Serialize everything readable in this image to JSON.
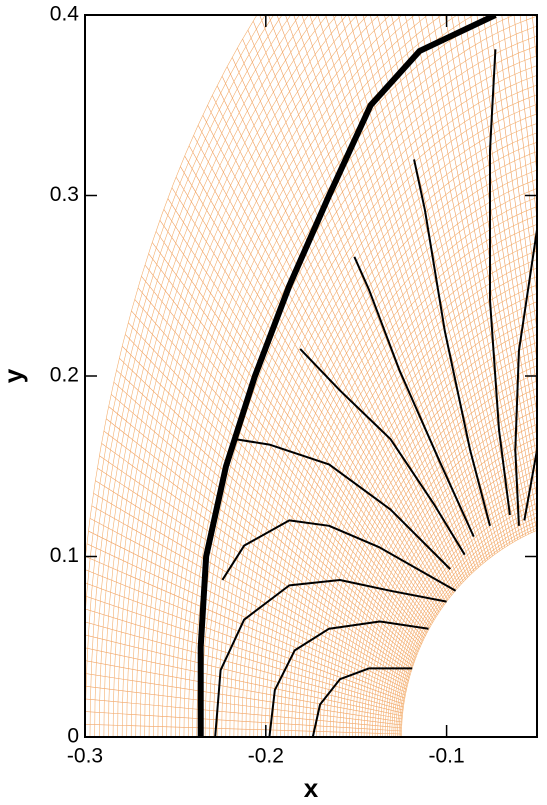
{
  "chart_data": {
    "type": "line",
    "x_label": "x",
    "y_label": "y",
    "xlim": [
      -0.3,
      -0.05
    ],
    "ylim": [
      0,
      0.4
    ],
    "xticks": [
      -0.3,
      -0.2,
      -0.1
    ],
    "yticks": [
      0,
      0.1,
      0.2,
      0.3,
      0.4
    ],
    "series": [
      {
        "color": "#000000",
        "x": [
          -0.236,
          -0.236,
          -0.233,
          -0.222,
          -0.206,
          -0.187,
          -0.165,
          -0.142,
          -0.115,
          -0.073
        ],
        "values": [
          0,
          0.05,
          0.1,
          0.15,
          0.2,
          0.25,
          0.3,
          0.35,
          0.38,
          0.4
        ]
      },
      {
        "color": "#000000",
        "x": [
          -0.174,
          -0.17,
          -0.159,
          -0.143,
          -0.123,
          -0.119
        ],
        "values": [
          0,
          0.018,
          0.032,
          0.038,
          0.038,
          0.038
        ]
      },
      {
        "color": "#000000",
        "x": [
          -0.198,
          -0.195,
          -0.184,
          -0.165,
          -0.137,
          -0.11
        ],
        "values": [
          0,
          0.026,
          0.048,
          0.06,
          0.064,
          0.06
        ]
      },
      {
        "color": "#000000",
        "x": [
          -0.228,
          -0.225,
          -0.212,
          -0.187,
          -0.159,
          -0.131,
          -0.1
        ],
        "values": [
          0,
          0.037,
          0.065,
          0.084,
          0.087,
          0.081,
          0.075
        ]
      },
      {
        "color": "#000000",
        "x": [
          -0.224,
          -0.212,
          -0.187,
          -0.165,
          -0.137,
          -0.095
        ],
        "values": [
          0.087,
          0.106,
          0.12,
          0.117,
          0.105,
          0.081
        ]
      },
      {
        "color": "#000000",
        "x": [
          -0.217,
          -0.198,
          -0.165,
          -0.131,
          -0.098
        ],
        "values": [
          0.165,
          0.162,
          0.151,
          0.126,
          0.093
        ]
      },
      {
        "color": "#000000",
        "x": [
          -0.181,
          -0.159,
          -0.131,
          -0.107,
          -0.09
        ],
        "values": [
          0.215,
          0.192,
          0.165,
          0.129,
          0.101
        ]
      },
      {
        "color": "#000000",
        "x": [
          -0.151,
          -0.143,
          -0.126,
          -0.104,
          -0.085
        ],
        "values": [
          0.266,
          0.248,
          0.203,
          0.153,
          0.111
        ]
      },
      {
        "color": "#000000",
        "x": [
          -0.118,
          -0.112,
          -0.101,
          -0.087,
          -0.076
        ],
        "values": [
          0.32,
          0.292,
          0.225,
          0.159,
          0.117
        ]
      },
      {
        "color": "#000000",
        "x": [
          -0.073,
          -0.076,
          -0.076,
          -0.071,
          -0.065
        ],
        "values": [
          0.381,
          0.325,
          0.242,
          0.17,
          0.123
        ]
      },
      {
        "color": "#000000",
        "x": [
          -0.05,
          -0.06,
          -0.062,
          -0.06
        ],
        "values": [
          0.281,
          0.214,
          0.159,
          0.117
        ]
      },
      {
        "color": "#000000",
        "x": [
          -0.05,
          -0.057
        ],
        "values": [
          0.159,
          0.12
        ]
      }
    ]
  }
}
